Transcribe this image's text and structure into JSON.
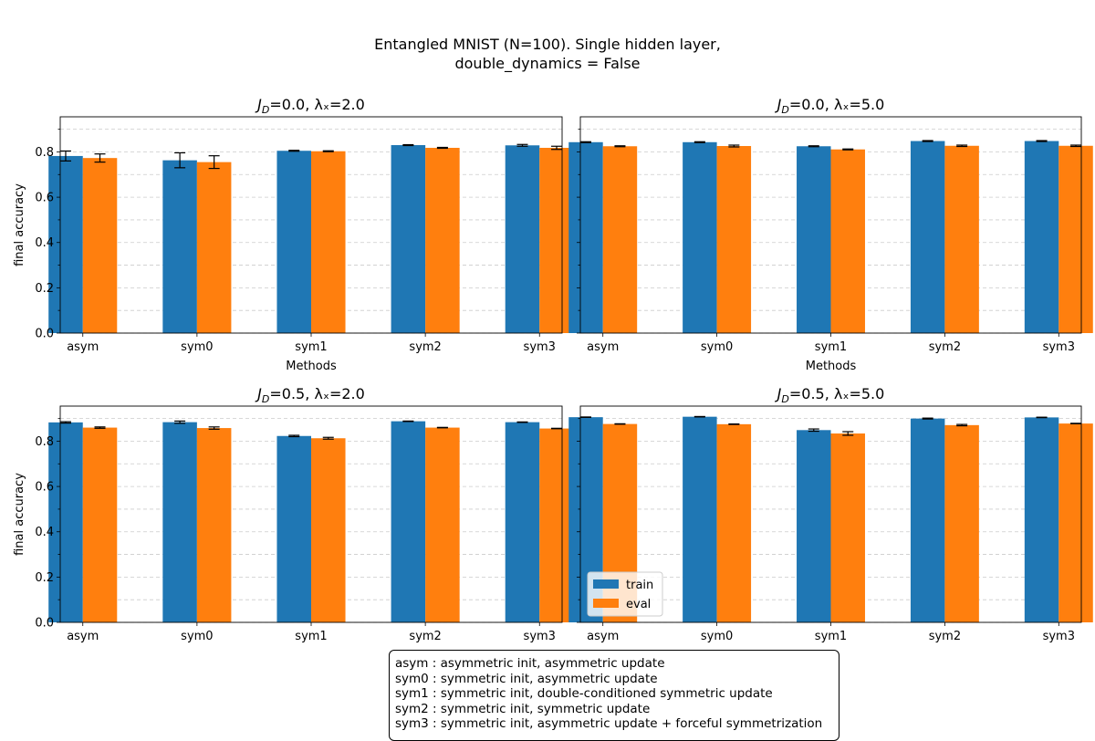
{
  "figure": {
    "title_line1": "Entangled MNIST (N=100). Single hidden layer,",
    "title_line2": "double_dynamics = False"
  },
  "colors": {
    "train": "#1f77b4",
    "eval": "#ff7f0e"
  },
  "notes": [
    "asym : asymmetric init, asymmetric update",
    "sym0 : symmetric init, asymmetric update",
    "sym1 : symmetric init, double-conditioned symmetric update",
    "sym2 : symmetric init, symmetric update",
    "sym3 : symmetric init, asymmetric update + forceful symmetrization"
  ],
  "chart_data": [
    {
      "type": "bar",
      "title_prefix": "J",
      "title_sub": "D",
      "title_rest": "=0.0, λₓ=2.0",
      "categories": [
        "asym",
        "sym0",
        "sym1",
        "sym2",
        "sym3"
      ],
      "series": [
        {
          "name": "train",
          "values": [
            0.782,
            0.763,
            0.805,
            0.83,
            0.829
          ],
          "errors": [
            0.022,
            0.033,
            0.002,
            0.002,
            0.004
          ]
        },
        {
          "name": "eval",
          "values": [
            0.773,
            0.755,
            0.803,
            0.818,
            0.818
          ],
          "errors": [
            0.018,
            0.028,
            0.002,
            0.002,
            0.007
          ]
        }
      ],
      "xlabel": "Methods",
      "ylabel": "final accuracy",
      "yticks": [
        "0.0",
        "0.2",
        "0.4",
        "0.6",
        "0.8"
      ],
      "ylim": [
        0,
        0.955
      ],
      "grid": true
    },
    {
      "type": "bar",
      "title_prefix": "J",
      "title_sub": "D",
      "title_rest": "=0.0, λₓ=5.0",
      "categories": [
        "asym",
        "sym0",
        "sym1",
        "sym2",
        "sym3"
      ],
      "series": [
        {
          "name": "train",
          "values": [
            0.843,
            0.843,
            0.825,
            0.848,
            0.848
          ],
          "errors": [
            0.002,
            0.002,
            0.002,
            0.002,
            0.002
          ]
        },
        {
          "name": "eval",
          "values": [
            0.825,
            0.826,
            0.811,
            0.827,
            0.827
          ],
          "errors": [
            0.002,
            0.004,
            0.002,
            0.003,
            0.003
          ]
        }
      ],
      "xlabel": "Methods",
      "ylabel": "",
      "ylim": [
        0,
        0.955
      ],
      "grid": true
    },
    {
      "type": "bar",
      "title_prefix": "J",
      "title_sub": "D",
      "title_rest": "=0.5, λₓ=2.0",
      "categories": [
        "asym",
        "sym0",
        "sym1",
        "sym2",
        "sym3"
      ],
      "series": [
        {
          "name": "train",
          "values": [
            0.883,
            0.884,
            0.823,
            0.888,
            0.884
          ],
          "errors": [
            0.003,
            0.005,
            0.003,
            0.001,
            0.001
          ]
        },
        {
          "name": "eval",
          "values": [
            0.86,
            0.858,
            0.813,
            0.86,
            0.856
          ],
          "errors": [
            0.003,
            0.005,
            0.004,
            0.001,
            0.001
          ]
        }
      ],
      "xlabel": "",
      "ylabel": "final accuracy",
      "yticks": [
        "0.0",
        "0.2",
        "0.4",
        "0.6",
        "0.8"
      ],
      "ylim": [
        0,
        0.955
      ],
      "grid": true
    },
    {
      "type": "bar",
      "title_prefix": "J",
      "title_sub": "D",
      "title_rest": "=0.5, λₓ=5.0",
      "categories": [
        "asym",
        "sym0",
        "sym1",
        "sym2",
        "sym3"
      ],
      "series": [
        {
          "name": "train",
          "values": [
            0.906,
            0.908,
            0.849,
            0.9,
            0.905
          ],
          "errors": [
            0.001,
            0.001,
            0.005,
            0.002,
            0.001
          ]
        },
        {
          "name": "eval",
          "values": [
            0.876,
            0.875,
            0.834,
            0.871,
            0.878
          ],
          "errors": [
            0.001,
            0.001,
            0.008,
            0.003,
            0.001
          ]
        }
      ],
      "xlabel": "",
      "ylabel": "",
      "ylim": [
        0,
        0.955
      ],
      "grid": true,
      "legend": {
        "placement": "lower-left",
        "entries": [
          "train",
          "eval"
        ]
      }
    }
  ]
}
